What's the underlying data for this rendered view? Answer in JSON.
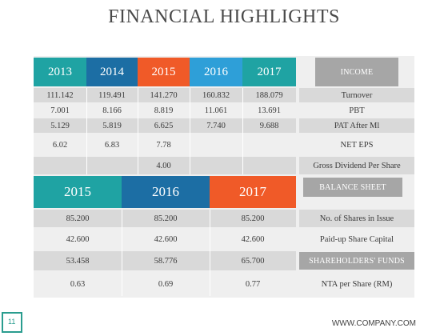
{
  "title": "FINANCIAL HIGHLIGHTS",
  "colors": {
    "teal": "#1fa3a3",
    "dark_blue": "#1c6ea4",
    "orange": "#f05a28",
    "light_blue": "#2e9fd8",
    "gray_label": "#a6a6a6",
    "row_band": "#d9d9d9",
    "panel": "#efefef"
  },
  "income": {
    "heading": "INCOME",
    "years": [
      "2013",
      "2014",
      "2015",
      "2016",
      "2017"
    ],
    "rows": [
      {
        "label": "Turnover",
        "values": [
          "111.142",
          "119.491",
          "141.270",
          "160.832",
          "188.079"
        ]
      },
      {
        "label": "PBT",
        "values": [
          "7.001",
          "8.166",
          "8.819",
          "11.061",
          "13.691"
        ]
      },
      {
        "label": "PAT After Ml",
        "values": [
          "5.129",
          "5.819",
          "6.625",
          "7.740",
          "9.688"
        ]
      },
      {
        "label": "NET EPS",
        "values": [
          "6.02",
          "6.83",
          "7.78",
          "",
          ""
        ]
      },
      {
        "label": "Gross Dividend Per Share",
        "values": [
          "",
          "",
          "4.00",
          "",
          ""
        ]
      }
    ]
  },
  "balance": {
    "heading": "BALANCE SHEET",
    "years": [
      "2015",
      "2016",
      "2017"
    ],
    "rows": [
      {
        "label": "No. of Shares in Issue",
        "values": [
          "85.200",
          "85.200",
          "85.200"
        ]
      },
      {
        "label": "Paid-up Share Capital",
        "values": [
          "42.600",
          "42.600",
          "42.600"
        ]
      },
      {
        "label": "SHAREHOLDERS' FUNDS",
        "values": [
          "53.458",
          "58.776",
          "65.700"
        ]
      },
      {
        "label": "NTA per Share (RM)",
        "values": [
          "0.63",
          "0.69",
          "0.77"
        ]
      }
    ]
  },
  "footer": {
    "page_number": "11",
    "website": "WWW.COMPANY.COM"
  }
}
